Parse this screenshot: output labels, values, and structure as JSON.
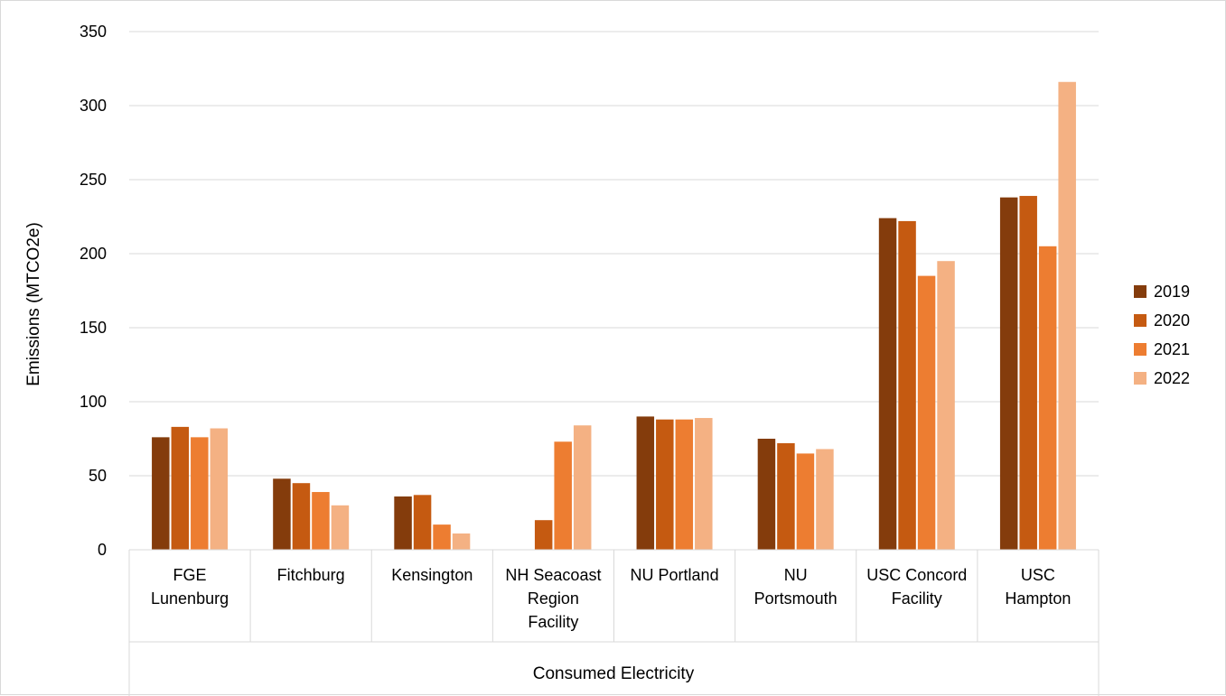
{
  "chart_data": {
    "type": "bar",
    "title": "",
    "ylabel": "Emissions (MTCO2e)",
    "xlabel": "Consumed Electricity",
    "ylim": [
      0,
      350
    ],
    "yticks": [
      0,
      50,
      100,
      150,
      200,
      250,
      300,
      350
    ],
    "grid": true,
    "legend_position": "right",
    "categories": [
      [
        "FGE",
        "Lunenburg"
      ],
      [
        "Fitchburg"
      ],
      [
        "Kensington"
      ],
      [
        "NH Seacoast",
        "Region",
        "Facility"
      ],
      [
        "NU Portland"
      ],
      [
        "NU",
        "Portsmouth"
      ],
      [
        "USC Concord",
        "Facility"
      ],
      [
        "USC",
        "Hampton"
      ]
    ],
    "series": [
      {
        "name": "2019",
        "color": "#843c0c",
        "values": [
          76,
          48,
          36,
          0,
          90,
          75,
          224,
          238
        ]
      },
      {
        "name": "2020",
        "color": "#c55a11",
        "values": [
          83,
          45,
          37,
          20,
          88,
          72,
          222,
          239
        ]
      },
      {
        "name": "2021",
        "color": "#ed7d31",
        "values": [
          76,
          39,
          17,
          73,
          88,
          65,
          185,
          205
        ]
      },
      {
        "name": "2022",
        "color": "#f4b183",
        "values": [
          82,
          30,
          11,
          84,
          89,
          68,
          195,
          316
        ]
      }
    ]
  }
}
